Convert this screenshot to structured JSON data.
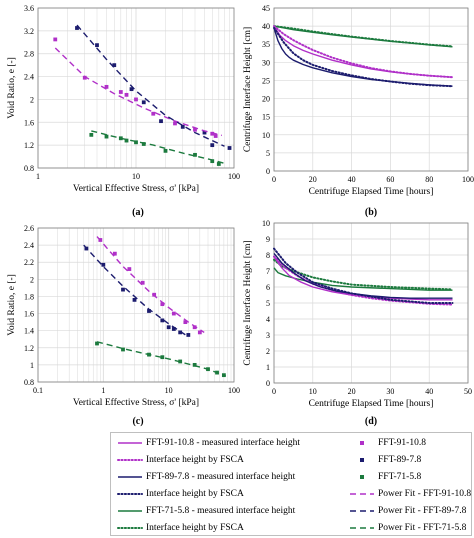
{
  "figure": {
    "panels": [
      {
        "id": "a",
        "tag": "(a)"
      },
      {
        "id": "b",
        "tag": "(b)"
      },
      {
        "id": "c",
        "tag": "(c)"
      },
      {
        "id": "d",
        "tag": "(d)"
      }
    ]
  },
  "colors": {
    "fft91": "#b030c8",
    "fft89": "#1c1c6e",
    "fft71": "#1c7a3e",
    "grid": "#d9d9d9"
  },
  "legend": {
    "entries": [
      {
        "label": "FFT-91-10.8 - measured interface height",
        "series": "fft91",
        "kind": "solid"
      },
      {
        "label": "FFT-91-10.8",
        "series": "fft91",
        "kind": "marker"
      },
      {
        "label": "Interface height by FSCA",
        "series": "fft91",
        "kind": "dotted"
      },
      {
        "label": "FFT-89-7.8",
        "series": "fft89",
        "kind": "marker"
      },
      {
        "label": "FFT-89-7.8 - measured interface height",
        "series": "fft89",
        "kind": "solid"
      },
      {
        "label": "FFT-71-5.8",
        "series": "fft71",
        "kind": "marker"
      },
      {
        "label": "Interface height by FSCA",
        "series": "fft89",
        "kind": "dotted"
      },
      {
        "label": "Power Fit - FFT-91-10.8",
        "series": "fft91",
        "kind": "dashed"
      },
      {
        "label": "FFT-71-5.8 - measured interface height",
        "series": "fft71",
        "kind": "solid"
      },
      {
        "label": "Power Fit - FFT-89-7.8",
        "series": "fft89",
        "kind": "dashed"
      },
      {
        "label": "Interface height by FSCA",
        "series": "fft71",
        "kind": "dotted"
      },
      {
        "label": "Power Fit - FFT-71-5.8",
        "series": "fft71",
        "kind": "dashed"
      }
    ]
  },
  "chart_data": [
    {
      "id": "a",
      "type": "scatter",
      "xscale": "log",
      "xlabel": "Vertical Effective Stress, σ' [kPa]",
      "ylabel": "Void Ratio, e [-]",
      "xlim": [
        1,
        100
      ],
      "ylim": [
        0.8,
        3.6
      ],
      "xticks": [
        1,
        10,
        100
      ],
      "yticks": [
        0.8,
        1.2,
        1.6,
        2.0,
        2.4,
        2.8,
        3.2,
        3.6
      ],
      "ytick_labels": [
        "0.8",
        "1.2",
        "1.6",
        "2",
        "2.4",
        "2.8",
        "3.2",
        "3.6"
      ],
      "grid": true,
      "series": [
        {
          "key": "fft91",
          "mode": "markers",
          "x": [
            1.5,
            3,
            5,
            7,
            8,
            10,
            15,
            25,
            40,
            60,
            65
          ],
          "y": [
            3.05,
            2.38,
            2.22,
            2.13,
            2.08,
            2.0,
            1.75,
            1.58,
            1.47,
            1.4,
            1.36
          ]
        },
        {
          "key": "fft89",
          "mode": "markers",
          "x": [
            2.5,
            4,
            6,
            9,
            12,
            18,
            30,
            50,
            60,
            90
          ],
          "y": [
            3.25,
            2.95,
            2.6,
            2.18,
            1.95,
            1.62,
            1.52,
            1.42,
            1.2,
            1.15
          ]
        },
        {
          "key": "fft71",
          "mode": "markers",
          "x": [
            3.5,
            5,
            7,
            8,
            10,
            12,
            20,
            40,
            60,
            70
          ],
          "y": [
            1.38,
            1.35,
            1.32,
            1.28,
            1.25,
            1.22,
            1.1,
            1.03,
            0.92,
            0.87
          ]
        },
        {
          "key": "fft91",
          "mode": "dashed",
          "x": [
            1.5,
            3,
            6,
            12,
            25,
            50,
            75
          ],
          "y": [
            2.9,
            2.4,
            2.1,
            1.85,
            1.62,
            1.45,
            1.37
          ]
        },
        {
          "key": "fft89",
          "mode": "dashed",
          "x": [
            2.5,
            5,
            10,
            20,
            40,
            80
          ],
          "y": [
            3.3,
            2.7,
            2.15,
            1.72,
            1.42,
            1.18
          ]
        },
        {
          "key": "fft71",
          "mode": "dashed",
          "x": [
            3.5,
            7,
            15,
            30,
            60,
            80
          ],
          "y": [
            1.45,
            1.32,
            1.2,
            1.06,
            0.94,
            0.88
          ]
        }
      ]
    },
    {
      "id": "b",
      "type": "line",
      "xlabel": "Centrifuge Elapsed Time [hours]",
      "ylabel": "Centrifuge Interface Height [cm]",
      "xlim": [
        0,
        100
      ],
      "ylim": [
        0,
        45
      ],
      "xticks": [
        0,
        20,
        40,
        60,
        80,
        100
      ],
      "yticks": [
        0,
        5,
        10,
        15,
        20,
        25,
        30,
        35,
        40,
        45
      ],
      "grid": true,
      "series": [
        {
          "key": "fft71",
          "mode": "solid",
          "x": [
            0,
            10,
            20,
            30,
            40,
            50,
            60,
            70,
            80,
            92
          ],
          "y": [
            40,
            39,
            38.3,
            37.6,
            37,
            36.4,
            35.8,
            35.3,
            34.8,
            34.3
          ]
        },
        {
          "key": "fft71",
          "mode": "dotted",
          "x": [
            0,
            10,
            20,
            30,
            40,
            50,
            60,
            70,
            80,
            92
          ],
          "y": [
            40,
            39.3,
            38.5,
            37.8,
            37.1,
            36.5,
            35.9,
            35.4,
            34.9,
            34.4
          ]
        },
        {
          "key": "fft91",
          "mode": "solid",
          "x": [
            0,
            3,
            6,
            10,
            15,
            20,
            30,
            40,
            50,
            60,
            70,
            80,
            92
          ],
          "y": [
            40,
            37.5,
            36,
            34.6,
            33.3,
            32.3,
            30.6,
            29.3,
            28.2,
            27.4,
            26.8,
            26.3,
            25.9
          ]
        },
        {
          "key": "fft91",
          "mode": "dotted",
          "x": [
            0,
            5,
            10,
            15,
            20,
            30,
            40,
            50,
            60,
            70,
            80,
            92
          ],
          "y": [
            40,
            37.8,
            36.1,
            34.7,
            33.4,
            31.3,
            29.7,
            28.4,
            27.5,
            26.8,
            26.3,
            25.9
          ]
        },
        {
          "key": "fft89",
          "mode": "solid",
          "x": [
            0,
            2,
            4,
            6,
            8,
            10,
            15,
            20,
            30,
            40,
            50,
            60,
            70,
            80,
            92
          ],
          "y": [
            39.5,
            36,
            33.8,
            32.3,
            31.3,
            30.6,
            29.4,
            28.5,
            27.1,
            26.1,
            25.3,
            24.7,
            24.2,
            23.8,
            23.4
          ]
        },
        {
          "key": "fft89",
          "mode": "dotted",
          "x": [
            0,
            5,
            10,
            15,
            20,
            30,
            40,
            50,
            60,
            70,
            80,
            92
          ],
          "y": [
            39.5,
            35.5,
            32.5,
            30.6,
            29.3,
            27.6,
            26.4,
            25.4,
            24.7,
            24.1,
            23.7,
            23.4
          ]
        }
      ]
    },
    {
      "id": "c",
      "type": "scatter",
      "xscale": "log",
      "xlabel": "Vertical Effective Stress, σ' [kPa]",
      "ylabel": "Void Ratio, e [-]",
      "xlim": [
        0.1,
        100
      ],
      "ylim": [
        0.8,
        2.6
      ],
      "xticks": [
        0.1,
        1,
        10,
        100
      ],
      "yticks": [
        0.8,
        1.0,
        1.2,
        1.4,
        1.6,
        1.8,
        2.0,
        2.2,
        2.4,
        2.6
      ],
      "ytick_labels": [
        "0.8",
        "1",
        "1.2",
        "1.4",
        "1.6",
        "1.8",
        "2",
        "2.2",
        "2.4",
        "2.6"
      ],
      "grid": true,
      "series": [
        {
          "key": "fft91",
          "mode": "markers",
          "x": [
            0.9,
            1.5,
            2.5,
            4,
            6,
            8,
            12,
            18,
            25,
            30
          ],
          "y": [
            2.46,
            2.3,
            2.12,
            1.96,
            1.82,
            1.71,
            1.6,
            1.5,
            1.44,
            1.38
          ]
        },
        {
          "key": "fft89",
          "mode": "markers",
          "x": [
            0.55,
            1,
            2,
            3,
            5,
            8,
            10,
            12,
            15,
            20
          ],
          "y": [
            2.36,
            2.17,
            1.88,
            1.76,
            1.63,
            1.52,
            1.44,
            1.42,
            1.38,
            1.35
          ]
        },
        {
          "key": "fft71",
          "mode": "markers",
          "x": [
            0.8,
            2,
            5,
            8,
            15,
            25,
            40,
            55,
            70
          ],
          "y": [
            1.25,
            1.18,
            1.12,
            1.09,
            1.04,
            1.0,
            0.95,
            0.91,
            0.88
          ]
        },
        {
          "key": "fft91",
          "mode": "dashed",
          "x": [
            0.8,
            2,
            5,
            10,
            20,
            35
          ],
          "y": [
            2.5,
            2.15,
            1.86,
            1.67,
            1.5,
            1.38
          ]
        },
        {
          "key": "fft89",
          "mode": "dashed",
          "x": [
            0.5,
            1,
            2,
            5,
            10,
            20
          ],
          "y": [
            2.4,
            2.15,
            1.92,
            1.65,
            1.48,
            1.33
          ]
        },
        {
          "key": "fft71",
          "mode": "dashed",
          "x": [
            0.8,
            2,
            5,
            10,
            20,
            40,
            75
          ],
          "y": [
            1.27,
            1.19,
            1.12,
            1.07,
            1.01,
            0.95,
            0.87
          ]
        }
      ]
    },
    {
      "id": "d",
      "type": "line",
      "xlabel": "Centrifuge Elapsed Time [hours]",
      "ylabel": "Centrifuge Interface Height [cm]",
      "xlim": [
        0,
        50
      ],
      "ylim": [
        0,
        10
      ],
      "xticks": [
        0,
        10,
        20,
        30,
        40,
        50
      ],
      "yticks": [
        0,
        1,
        2,
        3,
        4,
        5,
        6,
        7,
        8,
        9,
        10
      ],
      "grid": true,
      "series": [
        {
          "key": "fft71",
          "mode": "solid",
          "x": [
            0,
            1,
            3,
            6,
            10,
            15,
            20,
            30,
            40,
            46
          ],
          "y": [
            7.2,
            6.9,
            6.7,
            6.5,
            6.3,
            6.1,
            6.0,
            5.9,
            5.8,
            5.8
          ]
        },
        {
          "key": "fft71",
          "mode": "dotted",
          "x": [
            0,
            2,
            5,
            10,
            15,
            20,
            30,
            40,
            46
          ],
          "y": [
            7.7,
            7.3,
            7.0,
            6.6,
            6.35,
            6.15,
            6.0,
            5.9,
            5.85
          ]
        },
        {
          "key": "fft91",
          "mode": "solid",
          "x": [
            0,
            2,
            4,
            7,
            10,
            15,
            20,
            25,
            30,
            35,
            40,
            46
          ],
          "y": [
            7.9,
            7.2,
            6.7,
            6.3,
            6.0,
            5.7,
            5.5,
            5.4,
            5.3,
            5.25,
            5.2,
            5.2
          ]
        },
        {
          "key": "fft91",
          "mode": "dotted",
          "x": [
            0,
            3,
            6,
            10,
            15,
            20,
            25,
            30,
            35,
            40,
            46
          ],
          "y": [
            7.9,
            7.2,
            6.7,
            6.2,
            5.8,
            5.5,
            5.3,
            5.15,
            5.05,
            4.95,
            4.9
          ]
        },
        {
          "key": "fft89",
          "mode": "solid",
          "x": [
            0,
            2,
            5,
            8,
            12,
            16,
            20,
            25,
            30,
            35,
            40,
            46
          ],
          "y": [
            8.1,
            7.5,
            6.9,
            6.4,
            6.0,
            5.75,
            5.6,
            5.45,
            5.35,
            5.3,
            5.3,
            5.3
          ]
        },
        {
          "key": "fft89",
          "mode": "dotted",
          "x": [
            0,
            3,
            6,
            10,
            15,
            20,
            25,
            30,
            35,
            40,
            46
          ],
          "y": [
            8.4,
            7.5,
            6.9,
            6.3,
            5.9,
            5.6,
            5.4,
            5.2,
            5.1,
            5.0,
            5.0
          ]
        }
      ]
    }
  ]
}
